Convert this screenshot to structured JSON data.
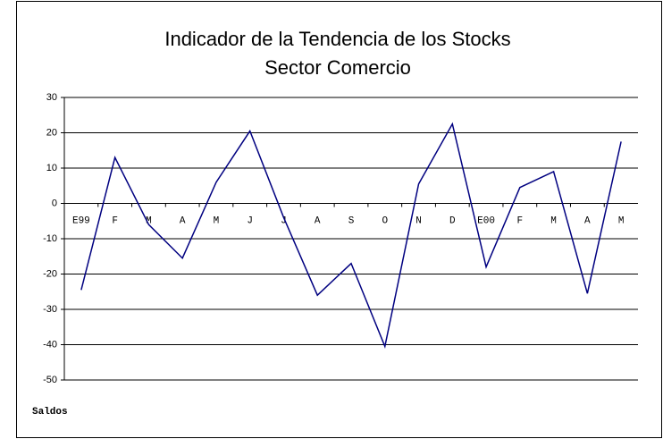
{
  "chart_data": {
    "type": "line",
    "title": "Indicador de la Tendencia de los Stocks",
    "subtitle": "Sector Comercio",
    "ylabel": "Saldos",
    "categories": [
      "E99",
      "F",
      "M",
      "A",
      "M",
      "J",
      "J",
      "A",
      "S",
      "O",
      "N",
      "D",
      "E00",
      "F",
      "M",
      "A",
      "M"
    ],
    "series": [
      {
        "color": "#000080",
        "values": [
          -24.5,
          13,
          -6,
          -15.5,
          6,
          20.5,
          -4,
          -26,
          -17,
          -40.5,
          5.5,
          22.5,
          -18,
          4.5,
          9,
          -25.5,
          17.5
        ]
      }
    ],
    "ylim": [
      -50,
      30
    ],
    "yticks": [
      -50,
      -40,
      -30,
      -20,
      -10,
      0,
      10,
      20,
      30
    ],
    "grid": true
  }
}
